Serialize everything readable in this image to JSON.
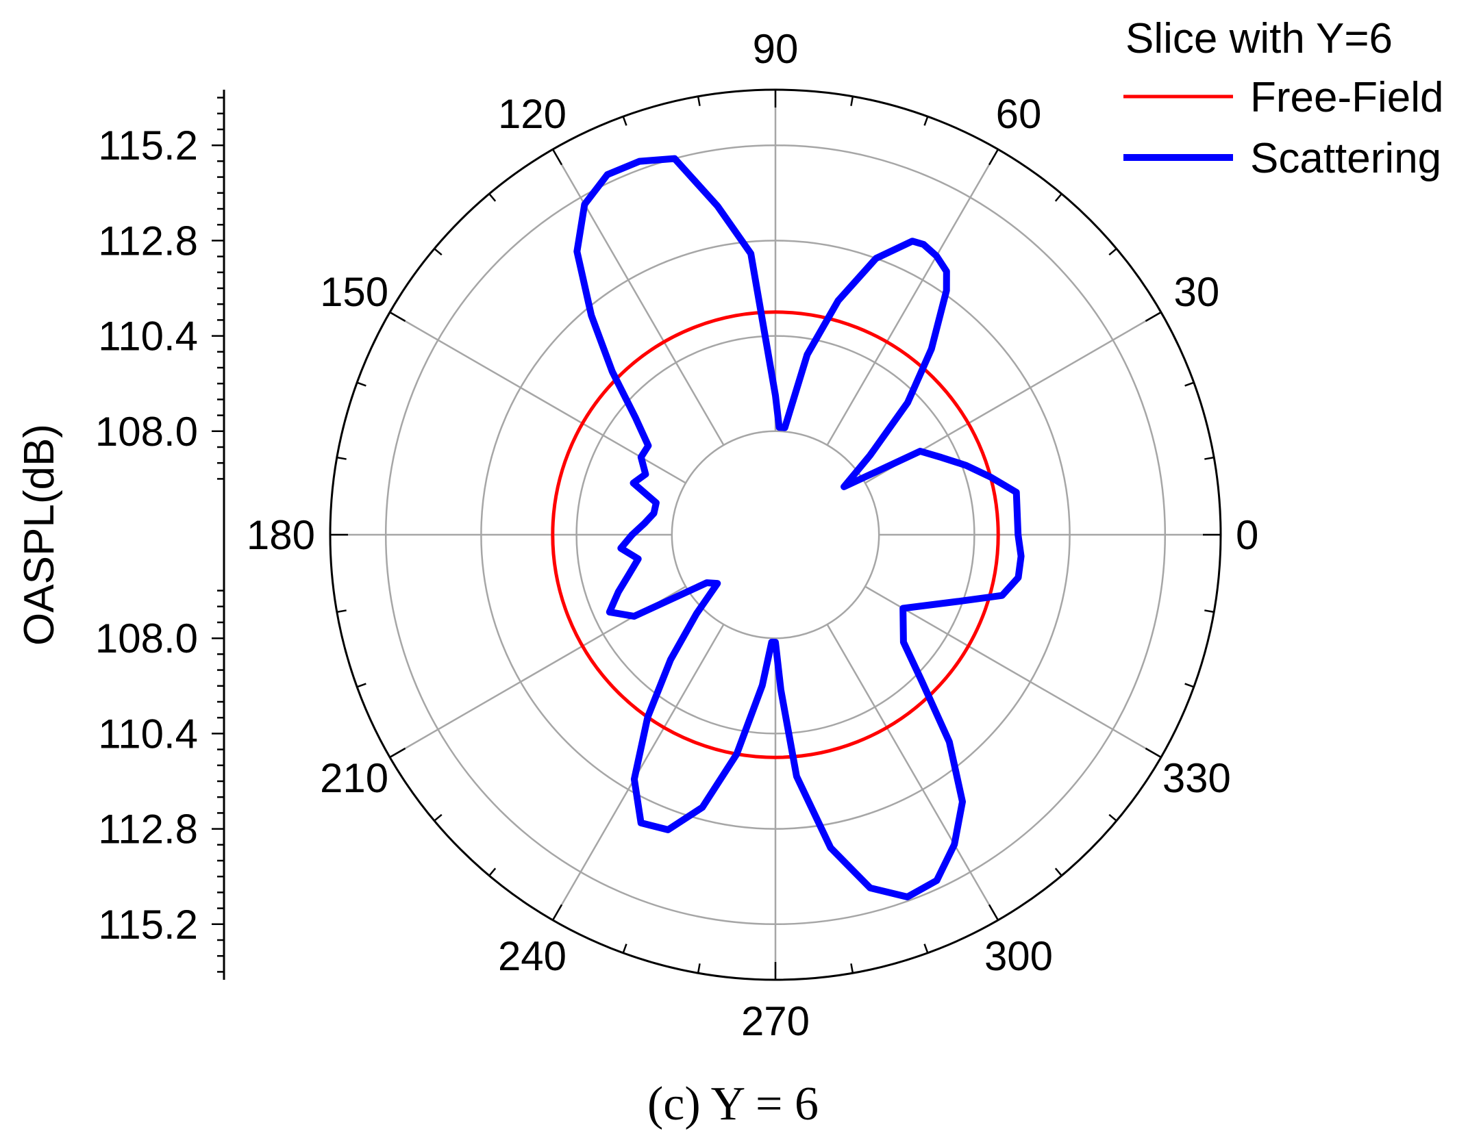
{
  "chart_data": {
    "type": "polar-line",
    "caption": "(c) Y = 6",
    "ylabel": "OASPL(dB)",
    "radial_ticks": [
      "108.0",
      "110.4",
      "112.8",
      "115.2"
    ],
    "radial_range": [
      106.6,
      116.6
    ],
    "angle_ticks": [
      "0",
      "30",
      "60",
      "90",
      "120",
      "150",
      "180",
      "210",
      "240",
      "270",
      "300",
      "330"
    ],
    "legend": {
      "title": "Slice with Y=6",
      "position": "top-right",
      "entries": [
        {
          "name": "Free-Field",
          "color": "#ff0000"
        },
        {
          "name": "Scattering",
          "color": "#0000ff"
        }
      ]
    },
    "series": [
      {
        "name": "Free-Field",
        "color": "#ff0000",
        "constant_value": 111.0
      },
      {
        "name": "Scattering",
        "color": "#0000ff",
        "theta": [
          0,
          10,
          15,
          20,
          25,
          30,
          35,
          40,
          45,
          50,
          55,
          57,
          60,
          63,
          65,
          70,
          75,
          80,
          85,
          88,
          90,
          95,
          100,
          105,
          110,
          115,
          120,
          125,
          130,
          135,
          140,
          145,
          150,
          155,
          160,
          165,
          170,
          175,
          180,
          185,
          190,
          195,
          200,
          205,
          210,
          215,
          220,
          225,
          230,
          235,
          240,
          245,
          250,
          255,
          260,
          265,
          268,
          270,
          272,
          275,
          280,
          285,
          290,
          295,
          300,
          305,
          310,
          315,
          320,
          330,
          340,
          345,
          350,
          355,
          360
        ],
        "values": [
          111.5,
          111.55,
          111.0,
          110.5,
          110.0,
          109.6,
          107.5,
          108.5,
          110.1,
          111.5,
          112.9,
          113.3,
          113.5,
          113.6,
          113.55,
          112.8,
          111.5,
          110.0,
          108.1,
          108.1,
          108.9,
          112.5,
          113.8,
          115.2,
          115.4,
          115.4,
          115.0,
          114.1,
          112.6,
          111.2,
          110.0,
          109.3,
          109.3,
          109.0,
          109.2,
          108.5,
          108.5,
          108.7,
          109.0,
          109.3,
          108.9,
          109.2,
          109.6,
          110.0,
          109.5,
          107.5,
          107.3,
          108.2,
          109.5,
          111.0,
          112.5,
          113.4,
          113.3,
          112.5,
          111.0,
          109.2,
          108.1,
          108.1,
          109.3,
          111.5,
          113.4,
          114.6,
          115.1,
          115.0,
          114.4,
          113.6,
          112.2,
          110.6,
          109.6,
          109.1,
          110.3,
          111.3,
          111.6,
          111.6,
          111.5
        ]
      }
    ]
  }
}
